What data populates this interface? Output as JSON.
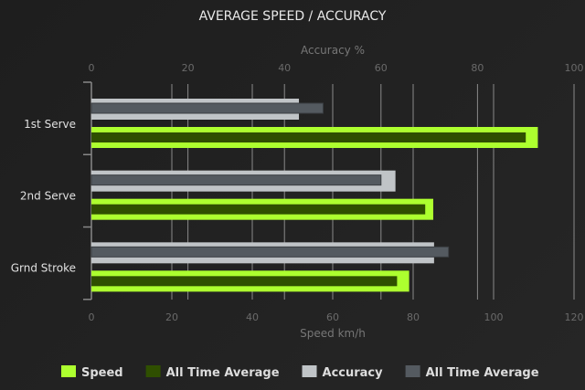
{
  "chart_data": {
    "type": "bar",
    "orientation": "horizontal",
    "title": "AVERAGE SPEED / ACCURACY",
    "categories": [
      "1st Serve",
      "2nd Serve",
      "Grnd Stroke"
    ],
    "speed_axis": {
      "label": "Speed km/h",
      "range": [
        0,
        120
      ],
      "ticks": [
        0,
        20,
        40,
        60,
        80,
        100,
        120
      ],
      "position": "bottom"
    },
    "accuracy_axis": {
      "label": "Accuracy %",
      "range": [
        0,
        100
      ],
      "ticks": [
        0,
        20,
        40,
        60,
        80,
        100
      ],
      "position": "top"
    },
    "grid": true,
    "legend_placement": "bottom",
    "series": [
      {
        "name": "Speed",
        "axis": "speed",
        "color": "#adff2f",
        "values": [
          111,
          85,
          79
        ]
      },
      {
        "name": "All Time Average",
        "axis": "speed",
        "color": "#2f4f00",
        "values": [
          108,
          83,
          76
        ]
      },
      {
        "name": "Accuracy",
        "axis": "accuracy",
        "color": "#c0c4c7",
        "values": [
          43,
          63,
          71
        ]
      },
      {
        "name": "All Time Average",
        "axis": "accuracy",
        "color": "#545a60",
        "values": [
          48,
          60,
          74
        ]
      }
    ]
  }
}
